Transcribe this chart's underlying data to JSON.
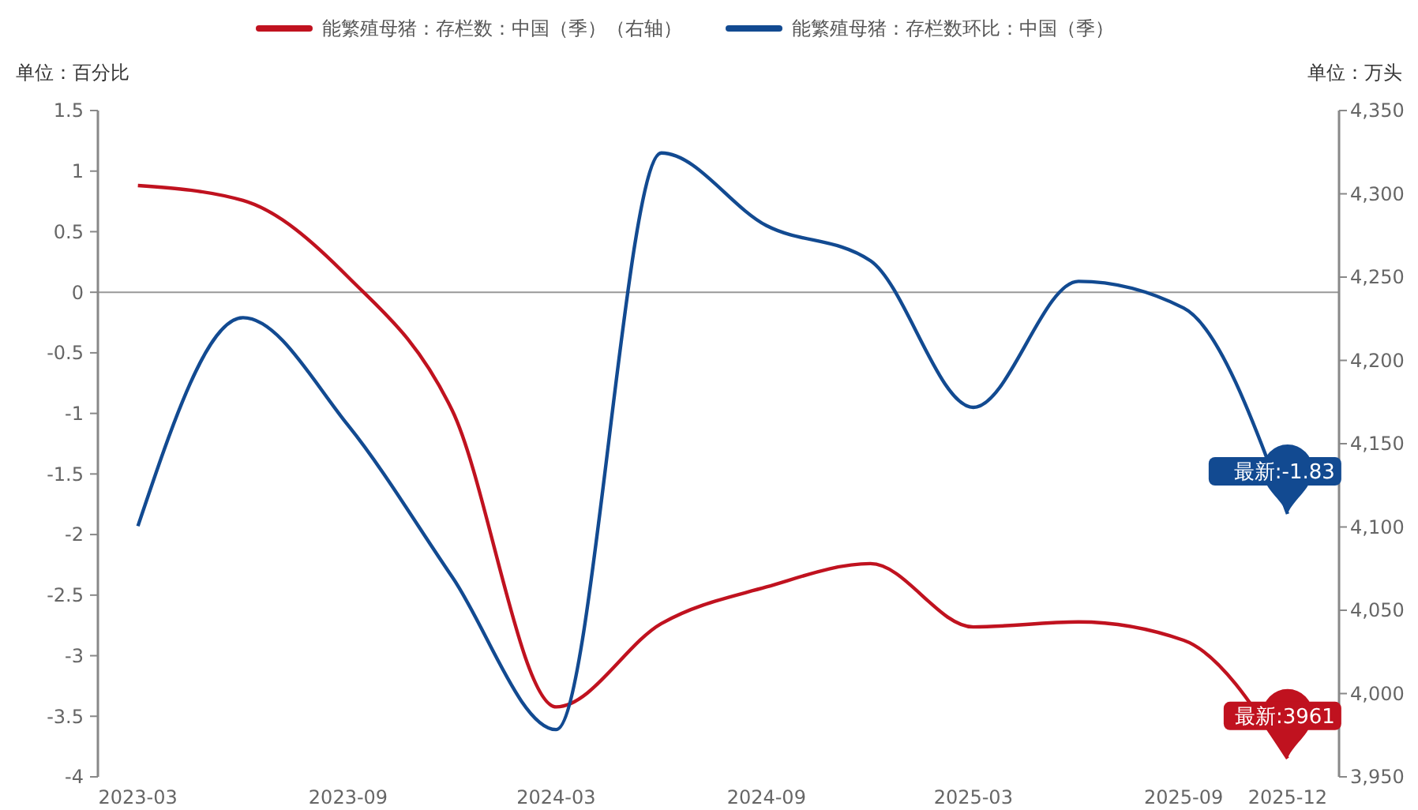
{
  "chart_data": {
    "type": "line",
    "x": [
      "2023-03",
      "2023-06",
      "2023-09",
      "2023-12",
      "2024-03",
      "2024-06",
      "2024-09",
      "2024-12",
      "2025-03",
      "2025-06",
      "2025-09",
      "2025-12"
    ],
    "series": [
      {
        "name": "能繁殖母猪：存栏数：中国（季）（右轴）",
        "color": "#c0121f",
        "axis": "y2",
        "values": [
          4305,
          4296,
          4250,
          4170,
          3992,
          4042,
          4064,
          4078,
          4040,
          4043,
          4032,
          3961
        ]
      },
      {
        "name": "能繁殖母猪：存栏数环比：中国（季）",
        "color": "#124a91",
        "values": [
          -1.93,
          -0.21,
          -1.1,
          -2.35,
          -3.61,
          1.15,
          0.55,
          0.26,
          -0.95,
          0.09,
          -0.13,
          -1.83
        ]
      }
    ],
    "ylabel": "单位：百分比",
    "y2label": "单位：万头",
    "xlim": [
      "2023-01-25",
      "2026-01-15"
    ],
    "xticks": [
      "2023-03",
      "2023-09",
      "2024-03",
      "2024-09",
      "2025-03",
      "2025-09",
      "2025-12"
    ],
    "ylim": [
      -4,
      1.5
    ],
    "yticks": [
      -4,
      -3.5,
      -3,
      -2.5,
      -2,
      -1.5,
      -1,
      -0.5,
      0,
      0.5,
      1,
      1.5
    ],
    "y2lim": [
      3950,
      4350
    ],
    "y2ticks": [
      {
        "value": 3950,
        "label": "3,950"
      },
      {
        "value": 4000,
        "label": "4,000"
      },
      {
        "value": 4050,
        "label": "4,050"
      },
      {
        "value": 4100,
        "label": "4,100"
      },
      {
        "value": 4150,
        "label": "4,150"
      },
      {
        "value": 4200,
        "label": "4,200"
      },
      {
        "value": 4250,
        "label": "4,250"
      },
      {
        "value": 4300,
        "label": "4,300"
      },
      {
        "value": 4350,
        "label": "4,350"
      }
    ],
    "ref_lines": [
      {
        "axis": "y",
        "value": 0,
        "color": "#999999"
      }
    ],
    "annotations": [
      "最新:3961",
      "最新:-1.83"
    ],
    "legend": "top",
    "grid": false,
    "marker": "none",
    "line_style": "solid"
  }
}
